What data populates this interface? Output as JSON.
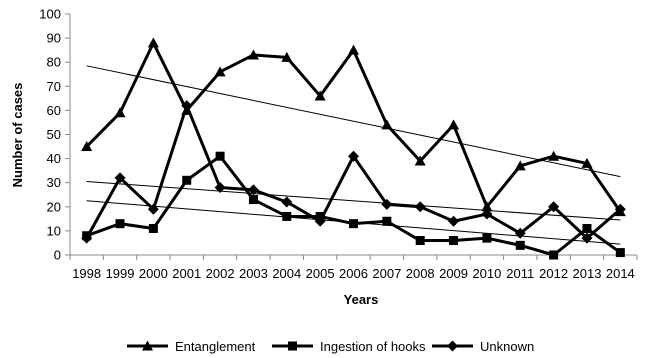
{
  "chart_data": {
    "type": "line",
    "title": "",
    "xlabel": "Years",
    "ylabel": "Number of cases",
    "categories": [
      "1998",
      "1999",
      "2000",
      "2001",
      "2002",
      "2003",
      "2004",
      "2005",
      "2006",
      "2007",
      "2008",
      "2009",
      "2010",
      "2011",
      "2012",
      "2013",
      "2014"
    ],
    "ylim": [
      0,
      100
    ],
    "yticks": [
      0,
      10,
      20,
      30,
      40,
      50,
      60,
      70,
      80,
      90,
      100
    ],
    "grid": false,
    "legend_position": "bottom",
    "series": [
      {
        "name": "Entanglement",
        "marker": "triangle",
        "color": "#000000",
        "values": [
          45,
          59,
          88,
          60,
          76,
          83,
          82,
          66,
          85,
          54,
          39,
          54,
          20,
          37,
          41,
          38,
          18
        ]
      },
      {
        "name": "Ingestion of hooks",
        "marker": "square",
        "color": "#000000",
        "values": [
          8,
          13,
          11,
          31,
          41,
          23,
          16,
          16,
          13,
          14,
          6,
          6,
          7,
          4,
          0,
          11,
          1
        ]
      },
      {
        "name": "Unknown",
        "marker": "diamond",
        "color": "#000000",
        "values": [
          7,
          32,
          19,
          62,
          28,
          27,
          22,
          14,
          41,
          21,
          20,
          14,
          17,
          9,
          20,
          7,
          19
        ]
      }
    ],
    "trendlines": [
      {
        "series": "Entanglement",
        "type": "linear",
        "start": 78.5,
        "end": 32.5
      },
      {
        "series": "Ingestion of hooks",
        "type": "linear",
        "start": 22.5,
        "end": 4.5
      },
      {
        "series": "Unknown",
        "type": "linear",
        "start": 30.5,
        "end": 14.5
      }
    ]
  }
}
